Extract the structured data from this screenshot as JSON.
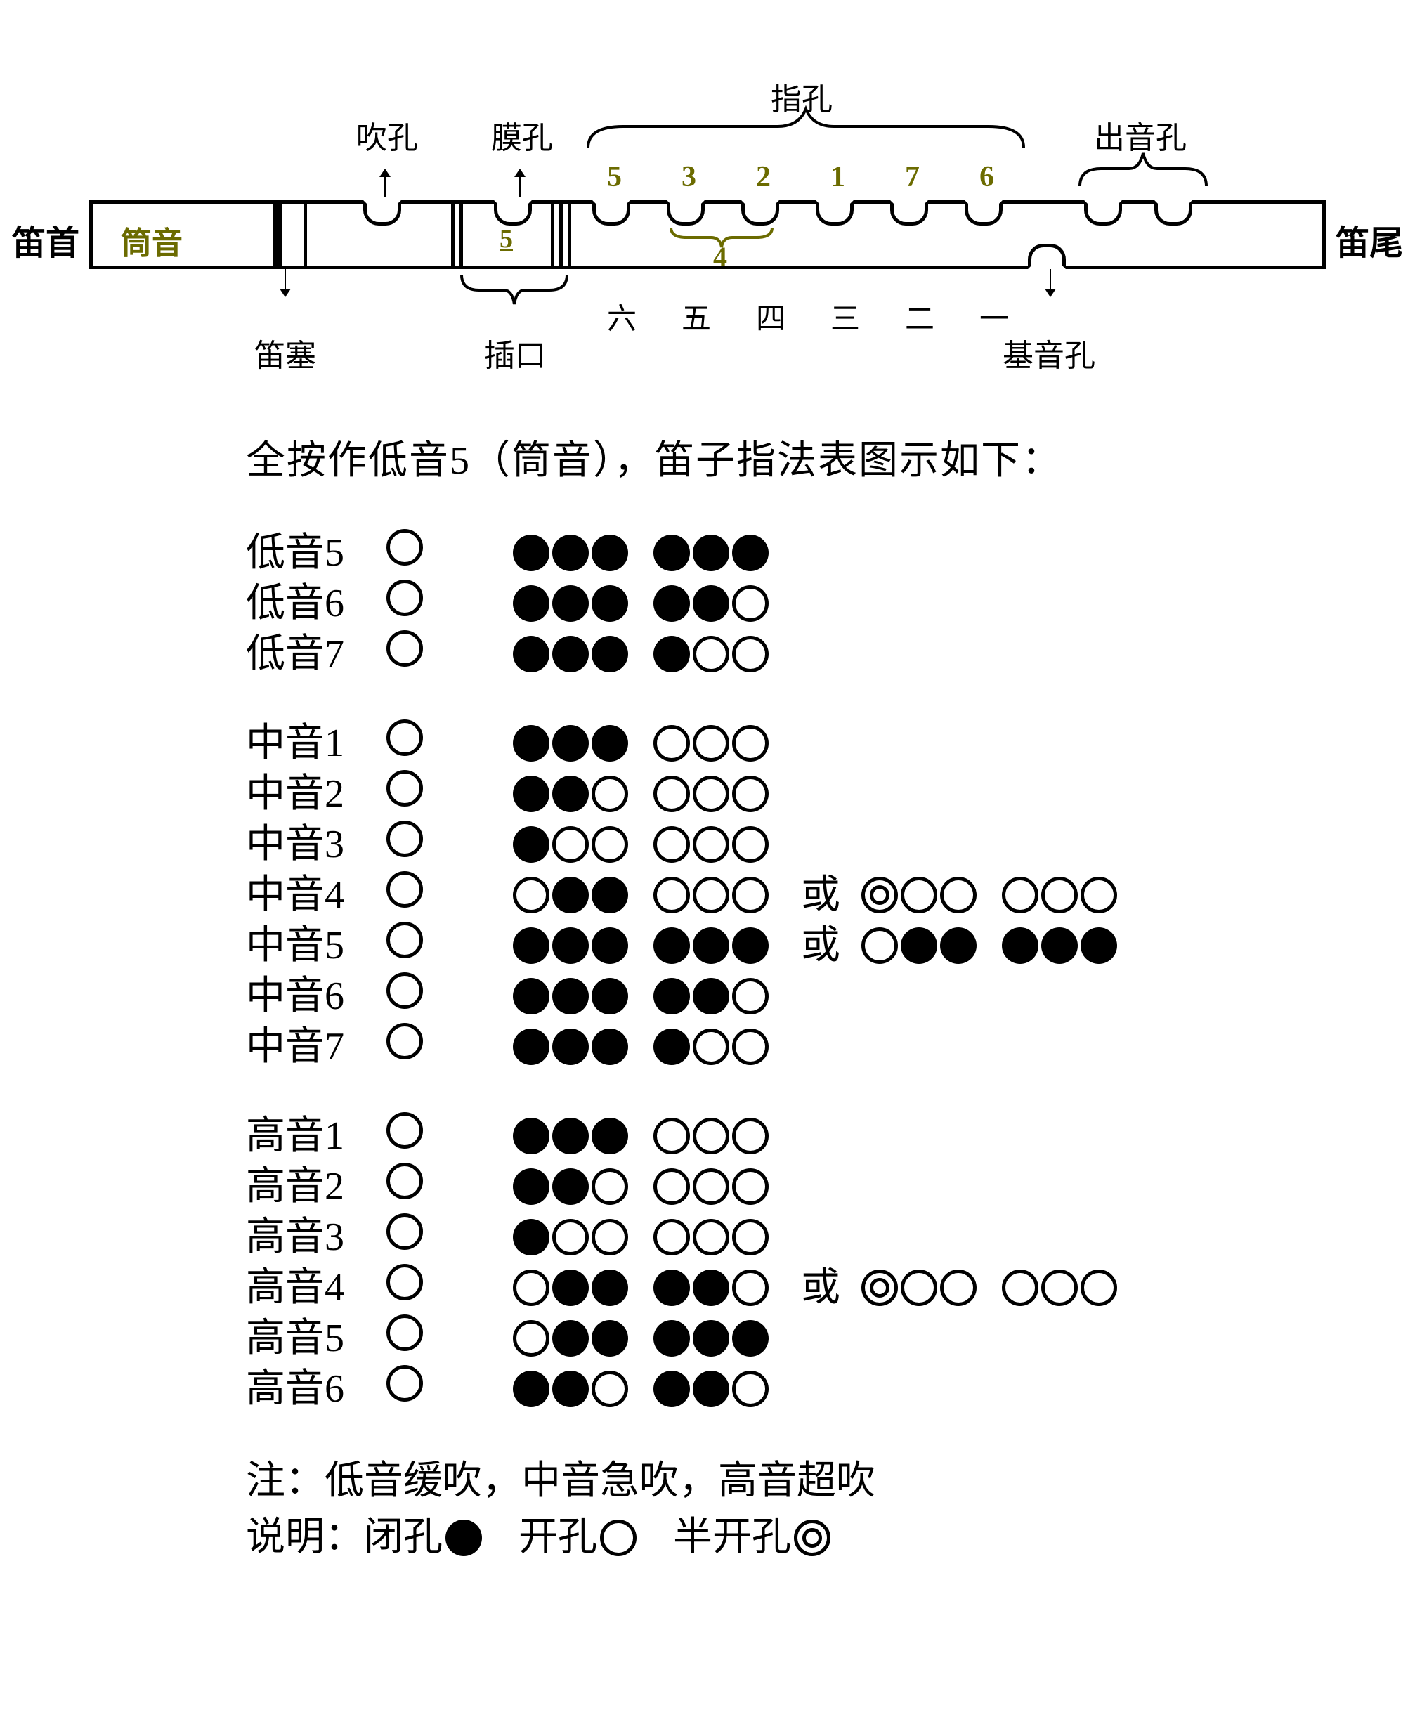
{
  "colors": {
    "olive": "#6b6b00",
    "black": "#000000",
    "white": "#ffffff"
  },
  "flute": {
    "left_label": "笛首",
    "right_label": "笛尾",
    "jianyin": "筒音",
    "mokong_num": "5",
    "top_labels": {
      "chui": "吹孔",
      "mo": "膜孔",
      "zhi": "指孔",
      "chu": "出音孔"
    },
    "bottom_labels": {
      "disai": "笛塞",
      "chakou": "插口",
      "jiyin": "基音孔"
    },
    "finger_nums_olive": [
      "5",
      "3",
      "2",
      "1",
      "7",
      "6"
    ],
    "four_label": "4",
    "han_nums": [
      "六",
      "五",
      "四",
      "三",
      "二",
      "一"
    ]
  },
  "chart_title": "全按作低音5（筒音），笛子指法表图示如下：",
  "or_word": "或",
  "hole_states": {
    "F": "filled",
    "O": "open",
    "H": "half"
  },
  "groups": [
    {
      "rows": [
        {
          "name": "低音5",
          "blow": "O",
          "main": [
            "F",
            "F",
            "F",
            "F",
            "F",
            "F"
          ]
        },
        {
          "name": "低音6",
          "blow": "O",
          "main": [
            "F",
            "F",
            "F",
            "F",
            "F",
            "O"
          ]
        },
        {
          "name": "低音7",
          "blow": "O",
          "main": [
            "F",
            "F",
            "F",
            "F",
            "O",
            "O"
          ]
        }
      ]
    },
    {
      "rows": [
        {
          "name": "中音1",
          "blow": "O",
          "main": [
            "F",
            "F",
            "F",
            "O",
            "O",
            "O"
          ]
        },
        {
          "name": "中音2",
          "blow": "O",
          "main": [
            "F",
            "F",
            "O",
            "O",
            "O",
            "O"
          ]
        },
        {
          "name": "中音3",
          "blow": "O",
          "main": [
            "F",
            "O",
            "O",
            "O",
            "O",
            "O"
          ]
        },
        {
          "name": "中音4",
          "blow": "O",
          "main": [
            "O",
            "F",
            "F",
            "O",
            "O",
            "O"
          ],
          "alt": [
            "H",
            "O",
            "O",
            "O",
            "O",
            "O"
          ]
        },
        {
          "name": "中音5",
          "blow": "O",
          "main": [
            "F",
            "F",
            "F",
            "F",
            "F",
            "F"
          ],
          "alt": [
            "O",
            "F",
            "F",
            "F",
            "F",
            "F"
          ]
        },
        {
          "name": "中音6",
          "blow": "O",
          "main": [
            "F",
            "F",
            "F",
            "F",
            "F",
            "O"
          ]
        },
        {
          "name": "中音7",
          "blow": "O",
          "main": [
            "F",
            "F",
            "F",
            "F",
            "O",
            "O"
          ]
        }
      ]
    },
    {
      "rows": [
        {
          "name": "高音1",
          "blow": "O",
          "main": [
            "F",
            "F",
            "F",
            "O",
            "O",
            "O"
          ]
        },
        {
          "name": "高音2",
          "blow": "O",
          "main": [
            "F",
            "F",
            "O",
            "O",
            "O",
            "O"
          ]
        },
        {
          "name": "高音3",
          "blow": "O",
          "main": [
            "F",
            "O",
            "O",
            "O",
            "O",
            "O"
          ]
        },
        {
          "name": "高音4",
          "blow": "O",
          "main": [
            "O",
            "F",
            "F",
            "F",
            "F",
            "O"
          ],
          "alt": [
            "H",
            "O",
            "O",
            "O",
            "O",
            "O"
          ]
        },
        {
          "name": "高音5",
          "blow": "O",
          "main": [
            "O",
            "F",
            "F",
            "F",
            "F",
            "F"
          ]
        },
        {
          "name": "高音6",
          "blow": "O",
          "main": [
            "F",
            "F",
            "O",
            "F",
            "F",
            "O"
          ]
        }
      ]
    }
  ],
  "notes_line": "注：低音缓吹，中音急吹，高音超吹",
  "legend_prefix": "说明：",
  "legend_items": [
    {
      "label": "闭孔",
      "state": "F"
    },
    {
      "label": "开孔",
      "state": "O"
    },
    {
      "label": "半开孔",
      "state": "H"
    }
  ]
}
